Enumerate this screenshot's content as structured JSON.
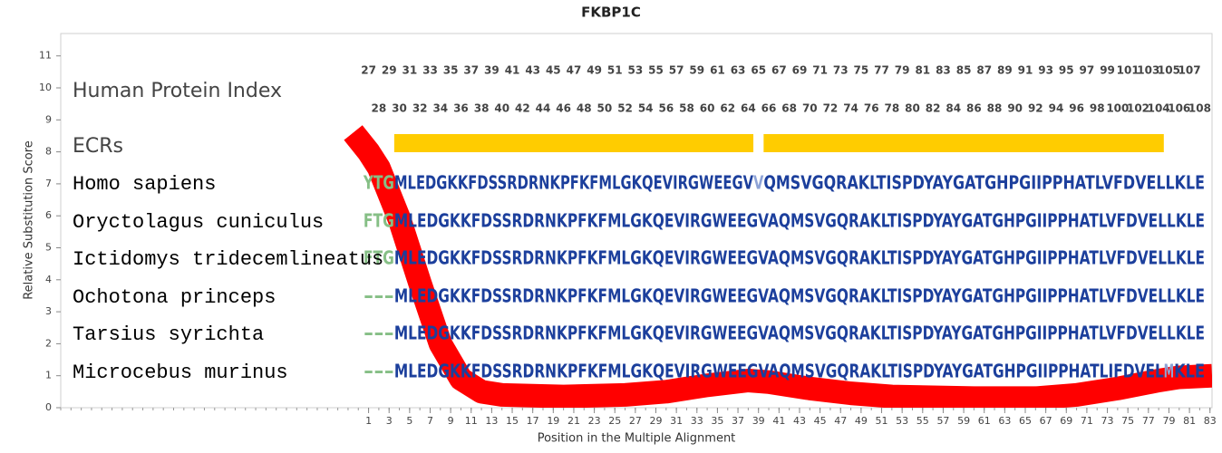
{
  "chart_data": {
    "type": "alignment",
    "title": "FKBP1C",
    "xlabel": "Position in the Multiple Alignment",
    "ylabel": "Relative Substitution Score",
    "xlim": [
      -29,
      83.2
    ],
    "ylim": [
      0,
      11.7
    ],
    "xticks": [
      1,
      3,
      5,
      7,
      9,
      11,
      13,
      15,
      17,
      19,
      21,
      23,
      25,
      27,
      29,
      31,
      33,
      35,
      37,
      39,
      41,
      43,
      45,
      47,
      49,
      51,
      53,
      55,
      57,
      59,
      61,
      63,
      65,
      67,
      69,
      71,
      73,
      75,
      77,
      79,
      81,
      83
    ],
    "yticks": [
      0,
      1,
      2,
      3,
      4,
      5,
      6,
      7,
      8,
      9,
      10,
      11
    ],
    "protein_index": {
      "label": "Human Protein Index",
      "x": [
        1,
        2,
        3,
        4,
        5,
        6,
        7,
        8,
        9,
        10,
        11,
        12,
        13,
        14,
        15,
        16,
        17,
        18,
        19,
        20,
        21,
        22,
        23,
        24,
        25,
        26,
        27,
        28,
        29,
        30,
        31,
        32,
        33,
        34,
        35,
        36,
        37,
        38,
        39,
        40,
        41,
        42,
        43,
        44,
        45,
        46,
        47,
        48,
        49,
        50,
        51,
        52,
        53,
        54,
        55,
        56,
        57,
        58,
        59,
        60,
        61,
        62,
        63,
        64,
        65,
        66,
        67,
        68,
        69,
        70,
        71,
        72,
        73,
        74,
        75,
        76,
        77,
        78,
        79,
        80,
        81,
        82
      ],
      "values": [
        27,
        28,
        29,
        30,
        31,
        32,
        33,
        34,
        35,
        36,
        37,
        38,
        39,
        40,
        41,
        42,
        43,
        44,
        45,
        46,
        47,
        48,
        49,
        50,
        51,
        52,
        53,
        54,
        55,
        56,
        57,
        58,
        59,
        60,
        61,
        62,
        63,
        64,
        65,
        66,
        67,
        68,
        69,
        70,
        71,
        72,
        73,
        74,
        75,
        76,
        77,
        78,
        79,
        80,
        81,
        82,
        83,
        84,
        85,
        86,
        87,
        88,
        89,
        90,
        91,
        92,
        93,
        94,
        95,
        96,
        97,
        98,
        99,
        100,
        101,
        102,
        103,
        104,
        105,
        106,
        107,
        108
      ]
    },
    "ecrs": {
      "label": "ECRs",
      "color": "#ffcc00",
      "ranges": [
        [
          4,
          38
        ],
        [
          40,
          78
        ]
      ]
    },
    "rows": [
      {
        "name": "Homo sapiens",
        "segments": [
          {
            "text": "YTG",
            "start": 1,
            "color": "#86bf86"
          },
          {
            "text": "MLEDGKKFDSSRDRNKPFKFMLGKQEVIRGWEEGV",
            "start": 4,
            "color": "#1c3f9c"
          },
          {
            "text": "V",
            "start": 39,
            "color": "#8ea3d6"
          },
          {
            "text": "QMSVGQRAKLTISPDYAYGATGHPGIIPPHATLVFDVELLKLE",
            "start": 40,
            "color": "#1c3f9c"
          }
        ]
      },
      {
        "name": "Oryctolagus cuniculus",
        "segments": [
          {
            "text": "FTG",
            "start": 1,
            "color": "#86bf86"
          },
          {
            "text": "MLEDGKKFDSSRDRNKPFKFMLGKQEVIRGWEEGVAQMSVGQRAKLTISPDYAYGATGHPGIIPPHATLVFDVELLKLE",
            "start": 4,
            "color": "#1c3f9c"
          }
        ]
      },
      {
        "name": "Ictidomys tridecemlineatus",
        "segments": [
          {
            "text": "FTG",
            "start": 1,
            "color": "#86bf86"
          },
          {
            "text": "MLEDGKKFDSSRDRNKPFKFMLGKQEVIRGWEEGVAQMSVGQRAKLTISPDYAYGATGHPGIIPPHATLVFDVELLKLE",
            "start": 4,
            "color": "#1c3f9c"
          }
        ]
      },
      {
        "name": "Ochotona princeps",
        "segments": [
          {
            "text": "---",
            "start": 1,
            "color": "#86bf86"
          },
          {
            "text": "MLEDGKKFDSSRDRNKPFKFMLGKQEVIRGWEEGVAQMSVGQRAKLTISPDYAYGATGHPGIIPPHATLVFDVELLKLE",
            "start": 4,
            "color": "#1c3f9c"
          }
        ]
      },
      {
        "name": "Tarsius syrichta",
        "segments": [
          {
            "text": "---",
            "start": 1,
            "color": "#86bf86"
          },
          {
            "text": "MLEDGKKFDSSRDRNKPFKFMLGKQEVIRGWEEGVAQMSVGQRAKLTISPDYAYGATGHPGIIPPHATLVFDVELLKLE",
            "start": 4,
            "color": "#1c3f9c"
          }
        ]
      },
      {
        "name": "Microcebus murinus",
        "segments": [
          {
            "text": "---",
            "start": 1,
            "color": "#86bf86"
          },
          {
            "text": "MLEDGKKFDSSRDRNKPFKFMLGKQEVIRGWEEGVAQMSVGQRAKLTISPDYAYGATGHPGIIPPHATLIFDVEL",
            "start": 4,
            "color": "#1c3f9c"
          },
          {
            "text": "M",
            "start": 79,
            "color": "#8ea3d6"
          },
          {
            "text": "KLE",
            "start": 80,
            "color": "#1c3f9c"
          }
        ]
      }
    ],
    "series": [
      {
        "color": "#ff0000",
        "x": [
          -0.5,
          1,
          2,
          4,
          6,
          8,
          10,
          12,
          14,
          20,
          26,
          30,
          34,
          38,
          40,
          44,
          48,
          52,
          60,
          66,
          70,
          74,
          78,
          80,
          83.2
        ],
        "values": [
          8.6,
          8.0,
          7.5,
          5.9,
          3.9,
          2.0,
          0.9,
          0.5,
          0.4,
          0.35,
          0.4,
          0.5,
          0.7,
          0.85,
          0.8,
          0.6,
          0.45,
          0.35,
          0.3,
          0.3,
          0.4,
          0.6,
          0.85,
          0.95,
          1.0
        ]
      }
    ]
  }
}
